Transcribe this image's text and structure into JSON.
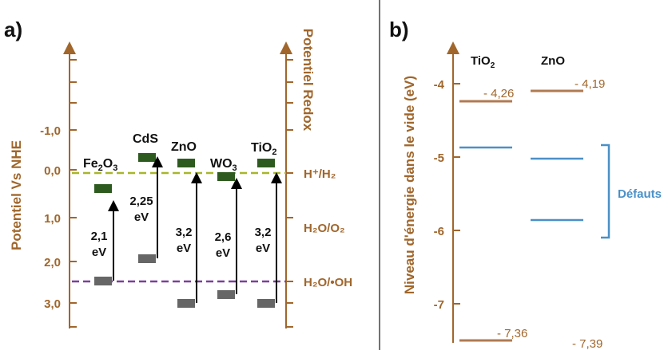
{
  "panel_a": {
    "label": "a)",
    "left_axis_title": "Potentiel Vs NHE",
    "right_axis_title": "Potentiel Redox",
    "left_ticks": [
      "-1,0",
      "0,0",
      "1,0",
      "2,0",
      "3,0"
    ],
    "redox_labels": {
      "h_plus": "H⁺/H₂",
      "h2o_o2": "H₂O/O₂",
      "h2o_oh": "H₂O/•OH"
    },
    "materials": [
      {
        "name": "Fe2O3",
        "name_base": "Fe",
        "name_sub1": "2",
        "name_mid": "O",
        "name_sub2": "3",
        "gap_value": "2,1",
        "gap_unit": "eV"
      },
      {
        "name": "CdS",
        "gap_value": "2,25",
        "gap_unit": "eV"
      },
      {
        "name": "ZnO",
        "gap_value": "3,2",
        "gap_unit": "eV"
      },
      {
        "name": "WO3",
        "name_base": "WO",
        "name_sub": "3",
        "gap_value": "2,6",
        "gap_unit": "eV"
      },
      {
        "name": "TiO2",
        "name_base": "TiO",
        "name_sub": "2",
        "gap_value": "3,2",
        "gap_unit": "eV"
      }
    ],
    "colors": {
      "axis": "#a0662b",
      "conduction_band": "#2d5a1e",
      "valence_band": "#666666",
      "h_line": "#a8b62a",
      "oh_line": "#7b3f9a"
    }
  },
  "panel_b": {
    "label": "b)",
    "axis_title": "Niveau d'énergie dans le vide (eV)",
    "ticks": [
      "-4",
      "-5",
      "-6",
      "-7"
    ],
    "columns": [
      {
        "name_base": "TiO",
        "name_sub": "2",
        "top_value": "- 4,26",
        "bottom_value": "- 7,36"
      },
      {
        "name_base": "ZnO",
        "name_sub": "",
        "top_value": "- 4,19",
        "bottom_value": "- 7,39"
      }
    ],
    "defects_label": "Défauts",
    "colors": {
      "levels": "#b07a52",
      "defects": "#4a90c8"
    }
  }
}
